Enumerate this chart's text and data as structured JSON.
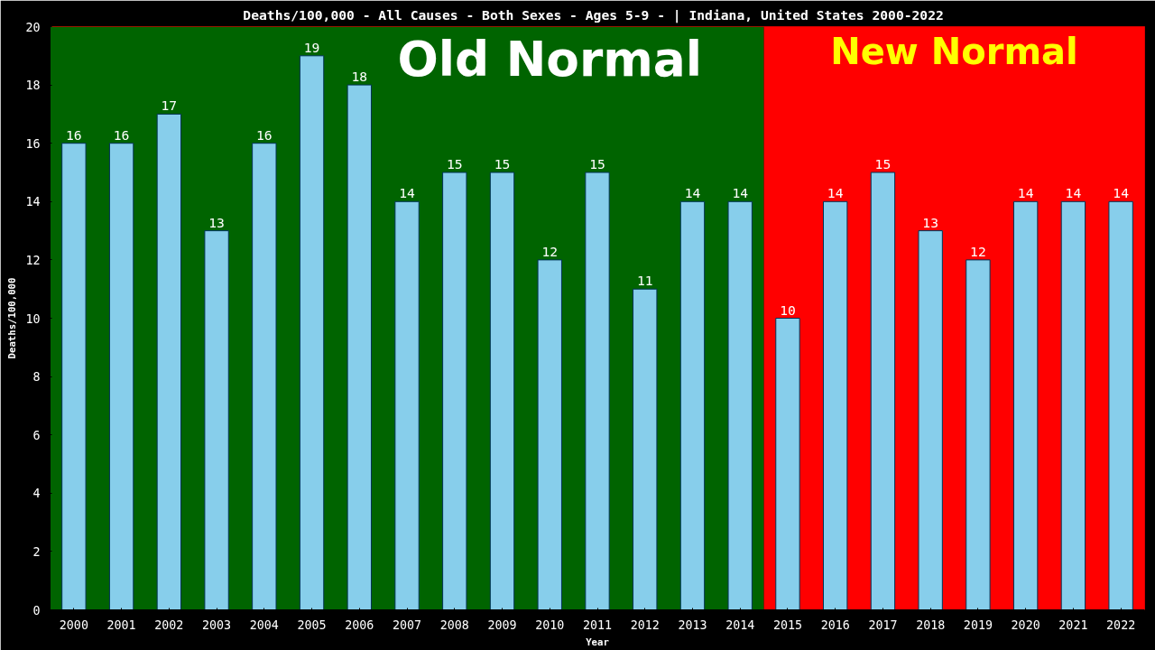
{
  "chart_data": {
    "type": "bar",
    "title": "Deaths/100,000 - All Causes - Both Sexes - Ages 5-9 -  | Indiana, United States 2000-2022",
    "xlabel": "Year",
    "ylabel": "Deaths/100,000",
    "categories": [
      "2000",
      "2001",
      "2002",
      "2003",
      "2004",
      "2005",
      "2006",
      "2007",
      "2008",
      "2009",
      "2010",
      "2011",
      "2012",
      "2013",
      "2014",
      "2015",
      "2016",
      "2017",
      "2018",
      "2019",
      "2020",
      "2021",
      "2022"
    ],
    "values": [
      16,
      16,
      17,
      13,
      16,
      19,
      18,
      14,
      15,
      15,
      12,
      15,
      11,
      14,
      14,
      10,
      14,
      15,
      13,
      12,
      14,
      14,
      14
    ],
    "color": "#87ceeb",
    "data_labels": true,
    "grid": false,
    "ylim": [
      0,
      20
    ],
    "yticks": [
      0,
      2,
      4,
      6,
      8,
      10,
      12,
      14,
      16,
      18,
      20
    ],
    "bands": [
      {
        "axis": "x",
        "from": "2000",
        "to": "2014",
        "label": "Old Normal",
        "color": "#006400"
      },
      {
        "axis": "x",
        "from": "2015",
        "to": "2022",
        "label": "New Normal",
        "color": "#ff0000"
      }
    ]
  }
}
